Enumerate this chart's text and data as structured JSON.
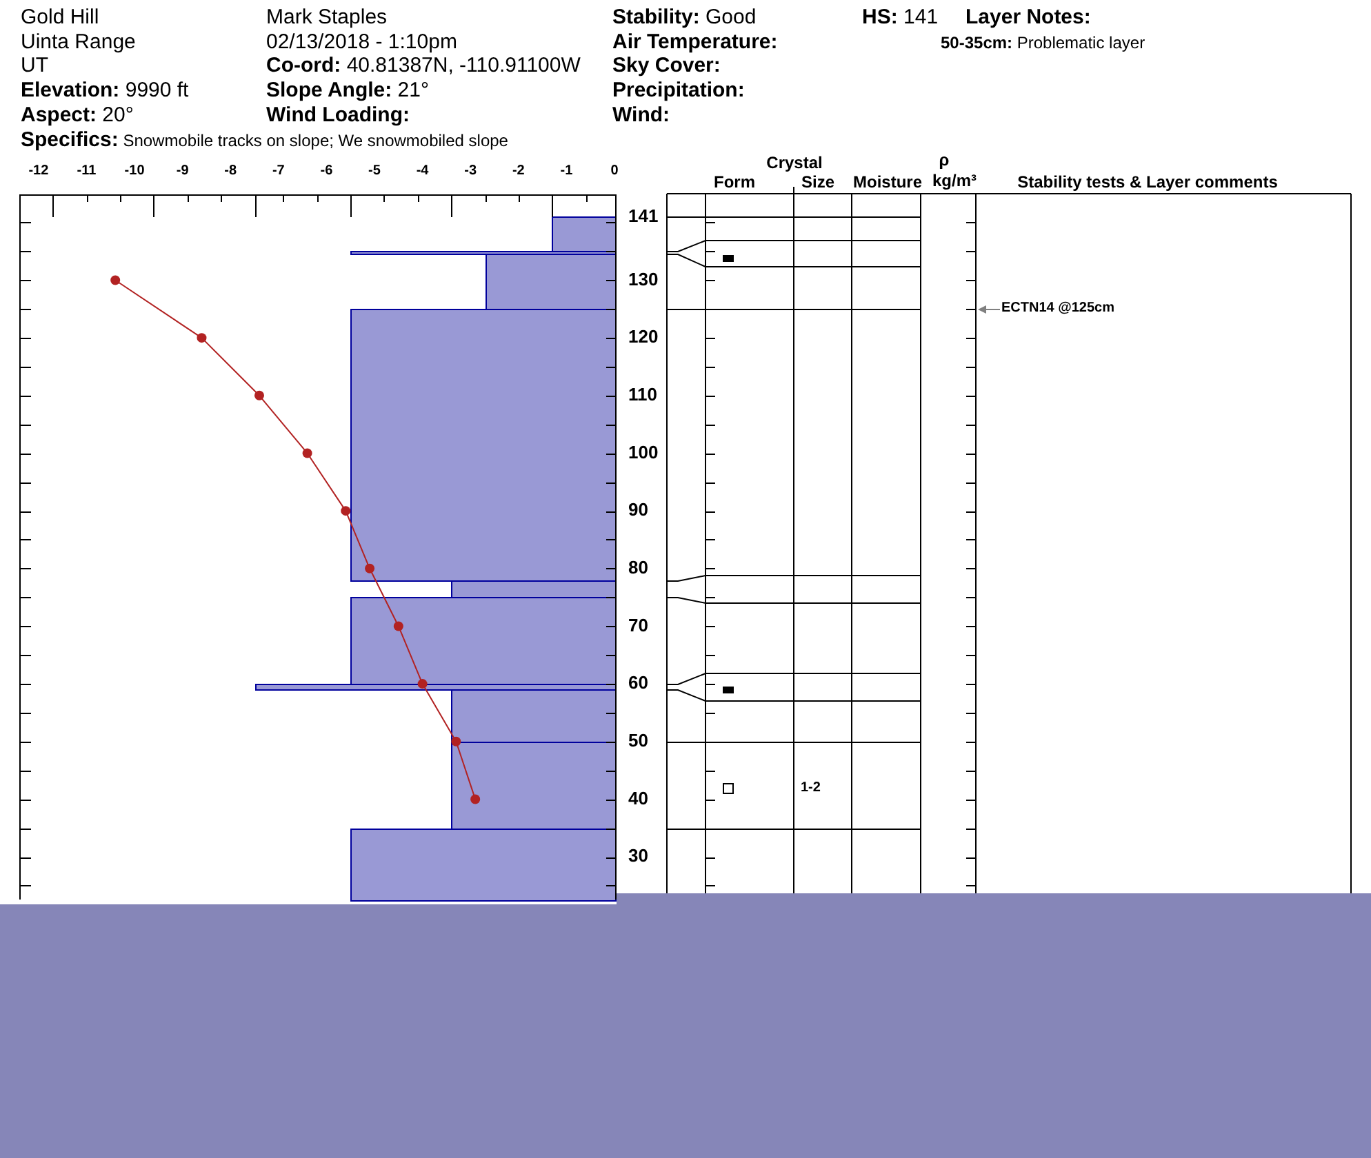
{
  "chart_data": {
    "type": "histogram",
    "orientation": "horizontal",
    "marker": "circle",
    "xlim": [
      -12.4,
      0
    ],
    "xticks": [
      -12,
      {
        "value": -11.7,
        "label": null
      },
      -11,
      {
        "value": -11,
        "label": null
      },
      -10,
      {
        "value": -10.3,
        "label": null
      },
      {
        "value": -9.6,
        "label": null
      },
      -9,
      {
        "value": -8.9,
        "label": null
      },
      {
        "value": -8.2,
        "label": null
      },
      -8,
      {
        "value": -7.5,
        "label": null
      },
      -7,
      {
        "value": -6.9,
        "label": null
      },
      {
        "value": -6.2,
        "label": null
      },
      -6,
      {
        "value": -5.5,
        "label": null
      },
      -5,
      {
        "value": -4.8,
        "label": null
      },
      {
        "value": -4.1,
        "label": null
      },
      -4,
      {
        "value": -3.4,
        "label": null
      },
      -3,
      {
        "value": -2.7,
        "label": null
      },
      -2,
      {
        "value": -2,
        "label": null
      },
      {
        "value": -1.3,
        "label": null
      },
      -1,
      {
        "value": -0.6,
        "label": null
      },
      0
    ],
    "ylim": [
      22.6,
      145
    ],
    "yticks": [
      {
        "value": 25,
        "label": null
      },
      30,
      {
        "value": 35,
        "label": null
      },
      40,
      {
        "value": 45,
        "label": null
      },
      50,
      {
        "value": 55,
        "label": null
      },
      60,
      {
        "value": 65,
        "label": null
      },
      70,
      {
        "value": 75,
        "label": null
      },
      80,
      {
        "value": 85,
        "label": null
      },
      90,
      {
        "value": 95,
        "label": null
      },
      100,
      {
        "value": 105,
        "label": null
      },
      110,
      {
        "value": 115,
        "label": null
      },
      120,
      {
        "value": 125,
        "label": null
      },
      130,
      {
        "value": 135,
        "label": null
      },
      {
        "value": 140,
        "label": null
      },
      141
    ],
    "series": [
      {
        "type": "histogram",
        "color": "#9999d5",
        "bins": [
          22.6,
          35,
          50,
          59,
          60,
          75,
          78,
          125,
          134.5,
          135,
          141
        ],
        "values": [
          -5.5,
          -3.4,
          -3.4,
          -7.5,
          -5.5,
          -3.4,
          -5.5,
          -2.7,
          -5.5,
          -1.3
        ]
      },
      {
        "type": "line",
        "color": "#b22222",
        "x": [
          130,
          120,
          110,
          100,
          90,
          80,
          70,
          60,
          50,
          40
        ],
        "values": [
          -10.4,
          -8.6,
          -7.4,
          -6.4,
          -5.6,
          -5.1,
          -4.5,
          -4.0,
          -3.3,
          -2.9
        ]
      }
    ],
    "annotations": [
      "Gold Hill",
      "Uinta Range",
      "UT",
      "Elevation: 9990 ft",
      "Aspect: 20°",
      "Mark Staples",
      "02/13/2018 - 1:10pm",
      "Co-ord: 40.81387N, -110.91100W",
      "Slope Angle: 21°",
      "Wind Loading:",
      "Stability: Good",
      "Air Temperature:",
      "Sky Cover:",
      "Precipitation:",
      "Wind:",
      "HS: 141",
      "Layer Notes:",
      "50-35cm: Problematic layer",
      "Specifics: Snowmobile tracks on slope; We snowmobiled slope",
      "Crystal",
      "Form",
      "Size",
      "Moisture",
      "ρ",
      "kg/m³",
      "Stability tests & Layer comments",
      "ECTN14 @125cm",
      "1-2"
    ]
  }
}
